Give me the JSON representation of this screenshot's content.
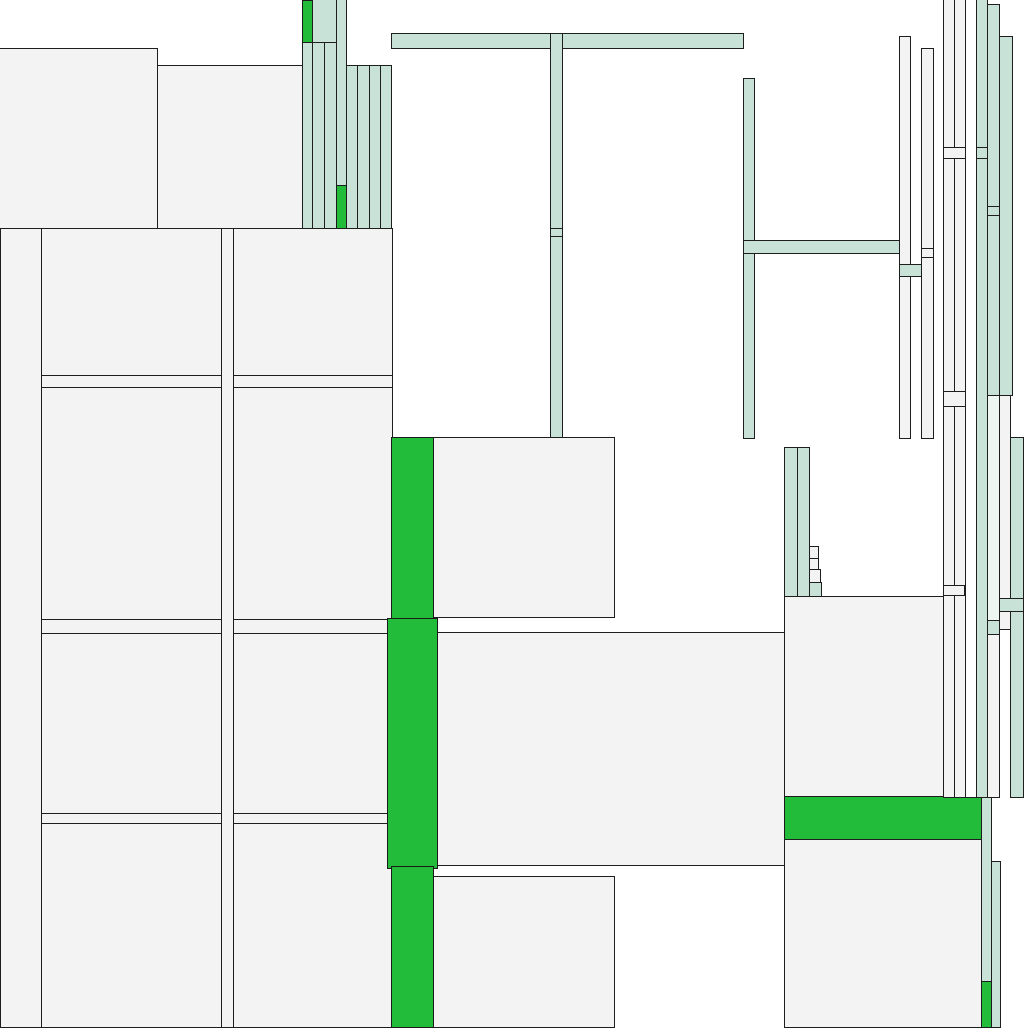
{
  "colors": {
    "background": "#ffffff",
    "room_fill": "#f3f3f3",
    "wall_fill": "#c9e2d8",
    "highlight_fill": "#22bb3a",
    "pale_fill": "#eef6f2",
    "outline": "#1e1e1e"
  },
  "legend": "none",
  "text": "none"
}
